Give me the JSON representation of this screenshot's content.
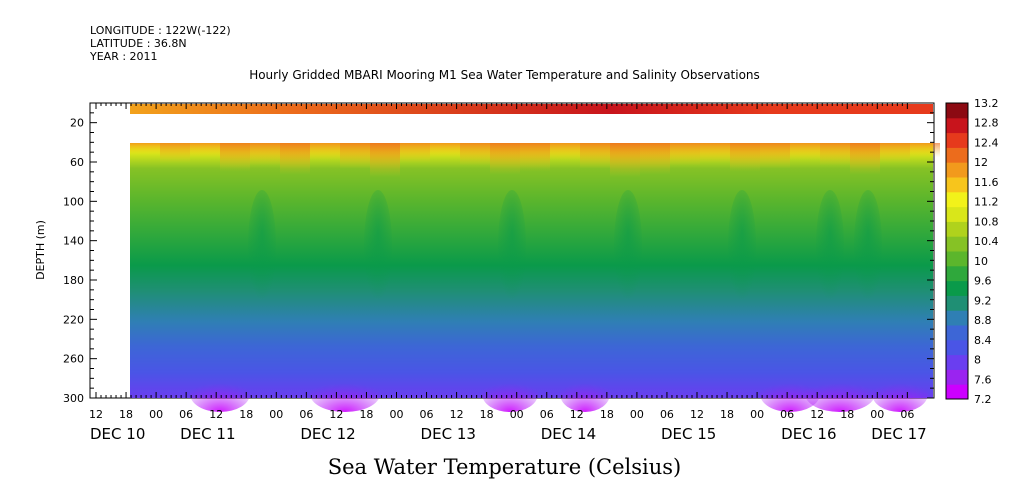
{
  "header": {
    "longitude": "LONGITUDE : 122W(-122)",
    "latitude": "LATITUDE : 36.8N",
    "year": "YEAR : 2011"
  },
  "chart_data": {
    "type": "heatmap",
    "title": "Hourly Gridded MBARI Mooring M1 Sea Water Temperature and Salinity Observations",
    "variable_label": "Sea Water Temperature (Celsius)",
    "ylabel": "DEPTH (m)",
    "y_range_m": [
      0,
      300
    ],
    "y_axis_inverted": true,
    "y_ticks": [
      20,
      60,
      100,
      140,
      180,
      220,
      260,
      300
    ],
    "x_hour_labels": [
      "12",
      "18",
      "00",
      "06",
      "12",
      "18",
      "00",
      "06",
      "12",
      "18",
      "00",
      "06",
      "12",
      "18",
      "00",
      "06",
      "12",
      "18",
      "00",
      "06",
      "12",
      "18",
      "00",
      "06",
      "12",
      "18",
      "00",
      "06"
    ],
    "x_day_labels": [
      "DEC 10",
      "DEC 11",
      "DEC 12",
      "DEC 13",
      "DEC 14",
      "DEC 15",
      "DEC 16",
      "DEC 17"
    ],
    "colorbar": {
      "min": 7.2,
      "max": 13.2,
      "step": 0.4,
      "labels": [
        "13.2",
        "12.8",
        "12.4",
        "12",
        "11.6",
        "11.2",
        "10.8",
        "10.4",
        "10",
        "9.6",
        "9.2",
        "8.8",
        "8.4",
        "8",
        "7.6",
        "7.2"
      ],
      "colors": [
        "#cc00ff",
        "#9a24f0",
        "#6a3ef0",
        "#4a55e6",
        "#3d66d6",
        "#2f7fb4",
        "#1f8f74",
        "#0a9a4a",
        "#2fa83c",
        "#5cb62c",
        "#86c225",
        "#b0d21c",
        "#d9e61a",
        "#f2f21a",
        "#f7c51c",
        "#f29a1c",
        "#ec6c1c",
        "#e63a1c",
        "#c8141c",
        "#8c0a12"
      ]
    },
    "depth_profile": [
      {
        "depth": 10,
        "temp": 12.7
      },
      {
        "depth": 40,
        "temp": 11.4
      },
      {
        "depth": 60,
        "temp": 10.9
      },
      {
        "depth": 80,
        "temp": 10.3
      },
      {
        "depth": 100,
        "temp": 10.0
      },
      {
        "depth": 140,
        "temp": 9.6
      },
      {
        "depth": 180,
        "temp": 9.0
      },
      {
        "depth": 220,
        "temp": 8.5
      },
      {
        "depth": 260,
        "temp": 8.0
      },
      {
        "depth": 300,
        "temp": 7.5
      }
    ],
    "data_gap": {
      "from_depth": 14,
      "to_depth": 40,
      "note": ""
    },
    "start_label": "DEC 10 18:00",
    "end_label": "DEC 17 ~12:00"
  }
}
